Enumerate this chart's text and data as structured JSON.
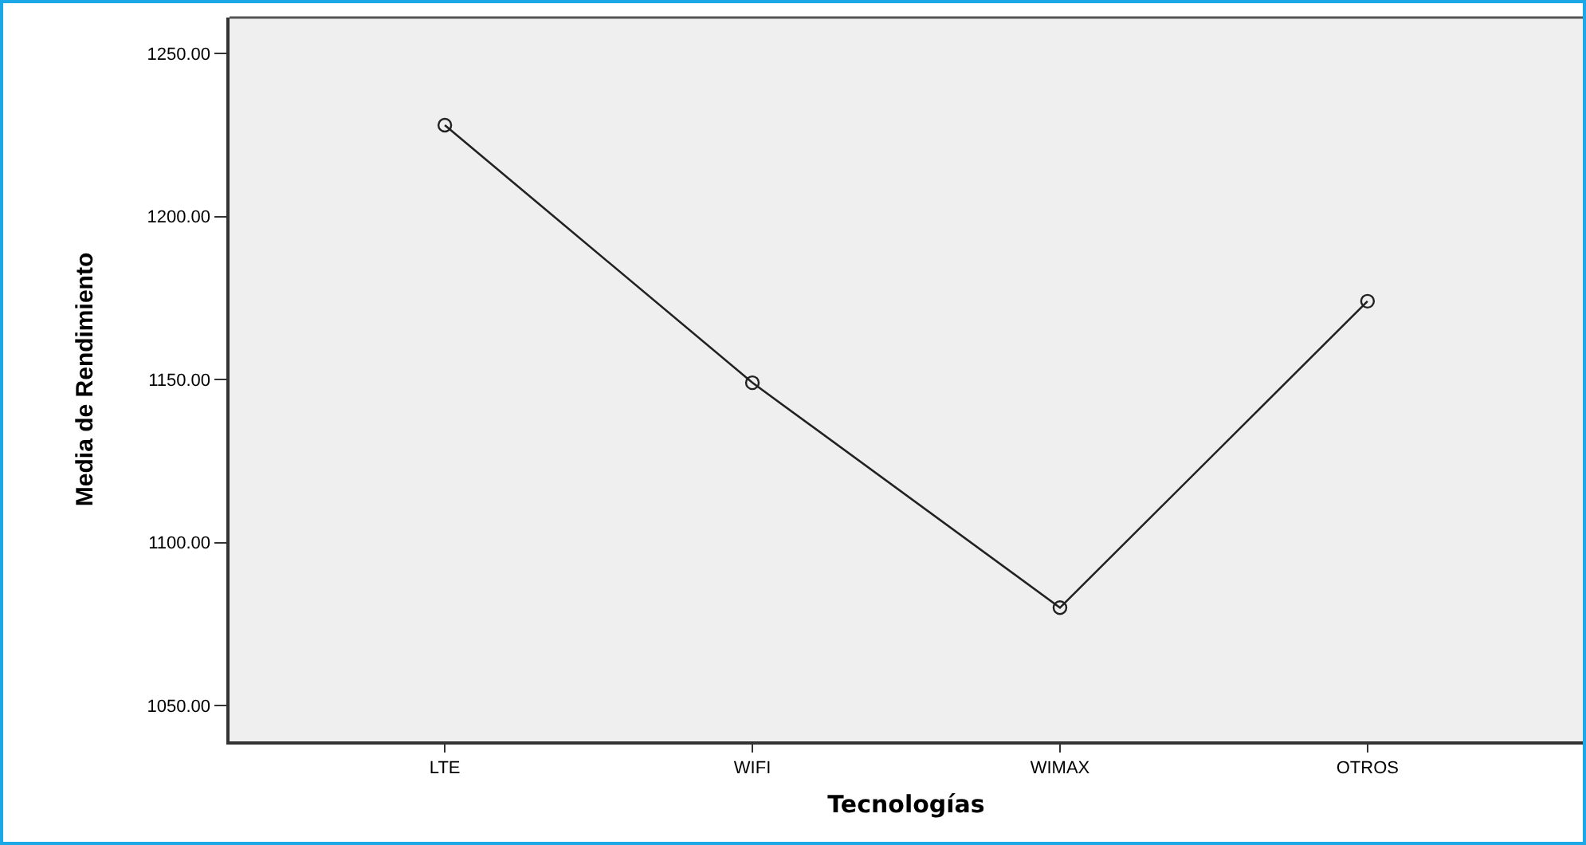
{
  "chart_data": {
    "type": "line",
    "xlabel": "Tecnologías",
    "ylabel": "Media de Rendimiento",
    "categories": [
      "LTE",
      "WIFI",
      "WIMAX",
      "OTROS"
    ],
    "series": [
      {
        "color": "#222222",
        "values": [
          1228,
          1149,
          1080,
          1174
        ]
      }
    ],
    "ylim": [
      1039,
      1261
    ],
    "yticks": [
      {
        "value": 1050,
        "label": "1050.00"
      },
      {
        "value": 1100,
        "label": "1100.00"
      },
      {
        "value": 1150,
        "label": "1150.00"
      },
      {
        "value": 1200,
        "label": "1200.00"
      },
      {
        "value": 1250,
        "label": "1250.00"
      }
    ],
    "grid": false,
    "marker": "circle",
    "line_style": "solid"
  }
}
